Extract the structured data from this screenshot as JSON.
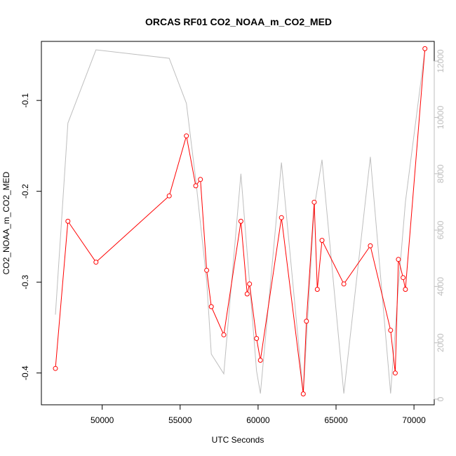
{
  "chart_data": {
    "type": "line",
    "title": "ORCAS RF01 CO2_NOAA_m_CO2_MED",
    "xlabel": "UTC Seconds",
    "ylabel": "CO2_NOAA_m_CO2_MED",
    "xlim": [
      46100,
      71300
    ],
    "ylim": [
      -0.435,
      -0.035
    ],
    "y2lim": [
      -200,
      12700
    ],
    "xticks": [
      50000,
      55000,
      60000,
      65000,
      70000
    ],
    "yticks": [
      -0.4,
      -0.3,
      -0.2,
      -0.1
    ],
    "y2ticks": [
      0,
      2000,
      4000,
      6000,
      8000,
      10000,
      12000
    ],
    "grid": false,
    "series": [
      {
        "color": "#ff0000",
        "axis": "left",
        "style": "line-with-circles",
        "x": [
          47000,
          47800,
          49600,
          54300,
          55400,
          56000,
          56300,
          56700,
          57000,
          57800,
          58900,
          59300,
          59450,
          59900,
          60150,
          61500,
          62900,
          63100,
          63600,
          63800,
          64100,
          65500,
          67200,
          68500,
          68800,
          69000,
          69300,
          69450,
          70700
        ],
        "y": [
          -0.395,
          -0.233,
          -0.278,
          -0.205,
          -0.139,
          -0.194,
          -0.187,
          -0.287,
          -0.327,
          -0.358,
          -0.233,
          -0.313,
          -0.302,
          -0.362,
          -0.386,
          -0.229,
          -0.423,
          -0.343,
          -0.212,
          -0.308,
          -0.254,
          -0.302,
          -0.26,
          -0.353,
          -0.4,
          -0.275,
          -0.295,
          -0.308,
          -0.043
        ]
      },
      {
        "color": "#bebebe",
        "axis": "right",
        "style": "line",
        "x": [
          47000,
          47800,
          49600,
          54300,
          55400,
          56000,
          56700,
          57000,
          57800,
          58900,
          59900,
          60150,
          61500,
          62900,
          63600,
          64100,
          65500,
          67200,
          68500,
          69000,
          69450,
          70700
        ],
        "y": [
          3000,
          9800,
          12400,
          12100,
          10500,
          7800,
          4200,
          1600,
          900,
          8000,
          1000,
          200,
          8400,
          200,
          6800,
          8500,
          200,
          8600,
          200,
          4000,
          7000,
          12400
        ]
      }
    ]
  }
}
